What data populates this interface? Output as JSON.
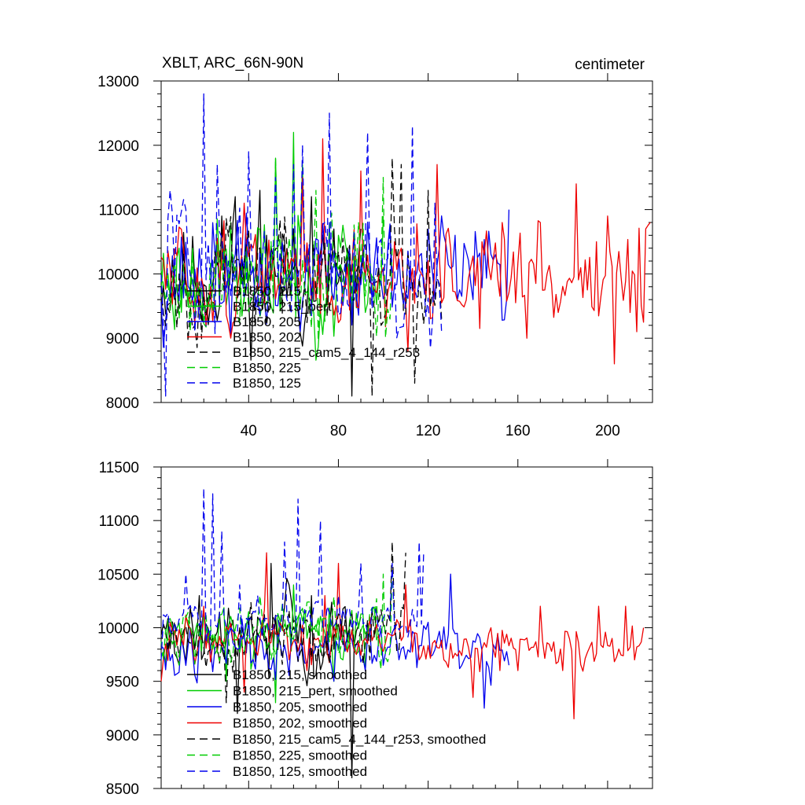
{
  "chart_data": [
    {
      "type": "line",
      "title_left": "XBLT, ARC_66N-90N",
      "title_right": "centimeter",
      "xlim": [
        1,
        220
      ],
      "ylim": [
        8000,
        13000
      ],
      "xticks": [
        40,
        80,
        120,
        160,
        200
      ],
      "xtick_labels": [
        "40",
        "80",
        "120",
        "160",
        "200"
      ],
      "yticks": [
        8000,
        9000,
        10000,
        11000,
        12000,
        13000
      ],
      "ytick_labels": [
        "8000",
        "9000",
        "10000",
        "11000",
        "12000",
        "13000"
      ],
      "series": [
        {
          "name": "B1850, 215",
          "color": "#000000",
          "dash": "solid",
          "length": 90,
          "mean": 9900,
          "amp": 650,
          "seed": 11,
          "anchors": [
            [
              28,
              10900
            ],
            [
              30,
              10300
            ],
            [
              34,
              11200
            ],
            [
              45,
              11300
            ],
            [
              48,
              10600
            ],
            [
              60,
              10700
            ],
            [
              68,
              11200
            ],
            [
              84,
              10400
            ],
            [
              86,
              8100
            ],
            [
              90,
              10700
            ]
          ]
        },
        {
          "name": "B1850, 215_pert",
          "color": "#00cc00",
          "dash": "solid",
          "length": 100,
          "mean": 9950,
          "amp": 650,
          "seed": 23,
          "anchors": [
            [
              32,
              10800
            ],
            [
              40,
              9900
            ],
            [
              52,
              11800
            ],
            [
              60,
              12200
            ],
            [
              64,
              11700
            ],
            [
              80,
              10600
            ],
            [
              92,
              9400
            ],
            [
              100,
              10900
            ]
          ]
        },
        {
          "name": "B1850, 205",
          "color": "#0000ee",
          "dash": "solid",
          "length": 156,
          "mean": 9950,
          "amp": 650,
          "seed": 37,
          "anchors": [
            [
              34,
              10300
            ],
            [
              50,
              10000
            ],
            [
              76,
              10800
            ],
            [
              90,
              10100
            ],
            [
              110,
              9700
            ],
            [
              122,
              10000
            ],
            [
              132,
              10600
            ],
            [
              140,
              9600
            ],
            [
              150,
              10300
            ],
            [
              156,
              11000
            ]
          ]
        },
        {
          "name": "B1850, 202",
          "color": "#ee0000",
          "dash": "solid",
          "length": 219,
          "mean": 9950,
          "amp": 600,
          "seed": 51,
          "anchors": [
            [
              38,
              11100
            ],
            [
              64,
              11500
            ],
            [
              73,
              12100
            ],
            [
              90,
              11600
            ],
            [
              108,
              10400
            ],
            [
              124,
              11700
            ],
            [
              130,
              10400
            ],
            [
              144,
              10500
            ],
            [
              153,
              10800
            ],
            [
              164,
              9000
            ],
            [
              170,
              10800
            ],
            [
              178,
              9400
            ],
            [
              186,
              11400
            ],
            [
              195,
              10500
            ],
            [
              200,
              10900
            ],
            [
              203,
              8600
            ],
            [
              210,
              9400
            ],
            [
              213,
              9100
            ],
            [
              217,
              10700
            ],
            [
              219,
              10800
            ]
          ]
        },
        {
          "name": "B1850, 215_cam5_4_144_r253",
          "color": "#000000",
          "dash": "dashed",
          "length": 126,
          "mean": 9950,
          "amp": 650,
          "seed": 67,
          "anchors": [
            [
              95,
              8100
            ],
            [
              104,
              11800
            ],
            [
              108,
              11700
            ],
            [
              114,
              8300
            ],
            [
              120,
              11300
            ],
            [
              126,
              9300
            ]
          ]
        },
        {
          "name": "B1850, 225",
          "color": "#00cc00",
          "dash": "dashed",
          "length": 104,
          "mean": 9950,
          "amp": 650,
          "seed": 79,
          "anchors": [
            [
              52,
              11800
            ],
            [
              70,
              11300
            ],
            [
              100,
              11500
            ],
            [
              104,
              10400
            ]
          ]
        },
        {
          "name": "B1850, 125",
          "color": "#0000ee",
          "dash": "dashed",
          "length": 126,
          "mean": 10000,
          "amp": 700,
          "seed": 93,
          "anchors": [
            [
              3,
              8100
            ],
            [
              5,
              11300
            ],
            [
              20,
              12800
            ],
            [
              26,
              11700
            ],
            [
              40,
              11900
            ],
            [
              52,
              11500
            ],
            [
              60,
              11700
            ],
            [
              64,
              12000
            ],
            [
              76,
              12500
            ],
            [
              93,
              12200
            ],
            [
              113,
              12300
            ],
            [
              123,
              11100
            ],
            [
              126,
              9100
            ]
          ]
        }
      ]
    },
    {
      "type": "line",
      "xlim": [
        1,
        220
      ],
      "ylim": [
        8500,
        11500
      ],
      "xticks": [
        40,
        80,
        120,
        160,
        200
      ],
      "xtick_labels": [],
      "yticks": [
        8500,
        9000,
        9500,
        10000,
        10500,
        11000,
        11500
      ],
      "ytick_labels": [
        "8500",
        "9000",
        "9500",
        "10000",
        "10500",
        "11000",
        "11500"
      ],
      "series": [
        {
          "name": "B1850, 215, smoothed",
          "color": "#000000",
          "dash": "solid",
          "length": 90,
          "mean": 9950,
          "amp": 260,
          "seed": 111,
          "anchors": [
            [
              18,
              10300
            ],
            [
              35,
              9200
            ],
            [
              50,
              10600
            ],
            [
              58,
              10400
            ],
            [
              68,
              10300
            ],
            [
              78,
              9800
            ],
            [
              86,
              8600
            ],
            [
              90,
              10100
            ]
          ]
        },
        {
          "name": "B1850, 215_pert, smoothed",
          "color": "#00cc00",
          "dash": "solid",
          "length": 100,
          "mean": 9950,
          "amp": 230,
          "seed": 123,
          "anchors": [
            [
              30,
              9500
            ],
            [
              40,
              10150
            ],
            [
              52,
              9300
            ],
            [
              60,
              10400
            ],
            [
              78,
              9500
            ],
            [
              92,
              9600
            ],
            [
              100,
              9700
            ]
          ]
        },
        {
          "name": "B1850, 205, smoothed",
          "color": "#0000ee",
          "dash": "solid",
          "length": 156,
          "mean": 9800,
          "amp": 200,
          "seed": 137,
          "anchors": [
            [
              10,
              9900
            ],
            [
              40,
              10100
            ],
            [
              60,
              9900
            ],
            [
              80,
              9800
            ],
            [
              100,
              9650
            ],
            [
              130,
              10500
            ],
            [
              136,
              9700
            ],
            [
              145,
              9250
            ],
            [
              150,
              9800
            ],
            [
              156,
              9650
            ]
          ]
        },
        {
          "name": "B1850, 202, smoothed",
          "color": "#ee0000",
          "dash": "solid",
          "length": 216,
          "mean": 9850,
          "amp": 150,
          "seed": 151,
          "anchors": [
            [
              1,
              9500
            ],
            [
              5,
              10050
            ],
            [
              20,
              10200
            ],
            [
              38,
              9400
            ],
            [
              48,
              10700
            ],
            [
              66,
              9600
            ],
            [
              74,
              10300
            ],
            [
              80,
              10600
            ],
            [
              92,
              9900
            ],
            [
              110,
              10400
            ],
            [
              116,
              9700
            ],
            [
              140,
              9350
            ],
            [
              148,
              10000
            ],
            [
              152,
              9600
            ],
            [
              160,
              9600
            ],
            [
              170,
              10200
            ],
            [
              180,
              9600
            ],
            [
              185,
              9150
            ],
            [
              196,
              10200
            ],
            [
              202,
              9900
            ],
            [
              208,
              10200
            ],
            [
              212,
              9700
            ],
            [
              216,
              10000
            ]
          ]
        },
        {
          "name": "B1850, 215_cam5_4_144_r253, smoothed",
          "color": "#000000",
          "dash": "dashed",
          "length": 110,
          "mean": 9950,
          "amp": 200,
          "seed": 167,
          "anchors": [
            [
              30,
              9300
            ],
            [
              94,
              9700
            ],
            [
              104,
              10800
            ],
            [
              110,
              10700
            ]
          ]
        },
        {
          "name": "B1850, 225, smoothed",
          "color": "#00cc00",
          "dash": "dashed",
          "length": 104,
          "mean": 9950,
          "amp": 200,
          "seed": 179,
          "anchors": [
            [
              2,
              9700
            ],
            [
              45,
              10300
            ],
            [
              62,
              10100
            ],
            [
              100,
              10500
            ],
            [
              104,
              10500
            ]
          ]
        },
        {
          "name": "B1850, 125, smoothed",
          "color": "#0000ee",
          "dash": "dashed",
          "length": 118,
          "mean": 10050,
          "amp": 120,
          "seed": 193,
          "anchors": [
            [
              1,
              9700
            ],
            [
              12,
              10500
            ],
            [
              20,
              11300
            ],
            [
              24,
              11250
            ],
            [
              28,
              10900
            ],
            [
              32,
              10000
            ],
            [
              36,
              10400
            ],
            [
              44,
              10300
            ],
            [
              56,
              10800
            ],
            [
              62,
              11200
            ],
            [
              72,
              11000
            ],
            [
              80,
              10300
            ],
            [
              90,
              10600
            ],
            [
              96,
              10200
            ],
            [
              104,
              10600
            ],
            [
              116,
              10800
            ],
            [
              118,
              10700
            ]
          ]
        }
      ]
    }
  ]
}
